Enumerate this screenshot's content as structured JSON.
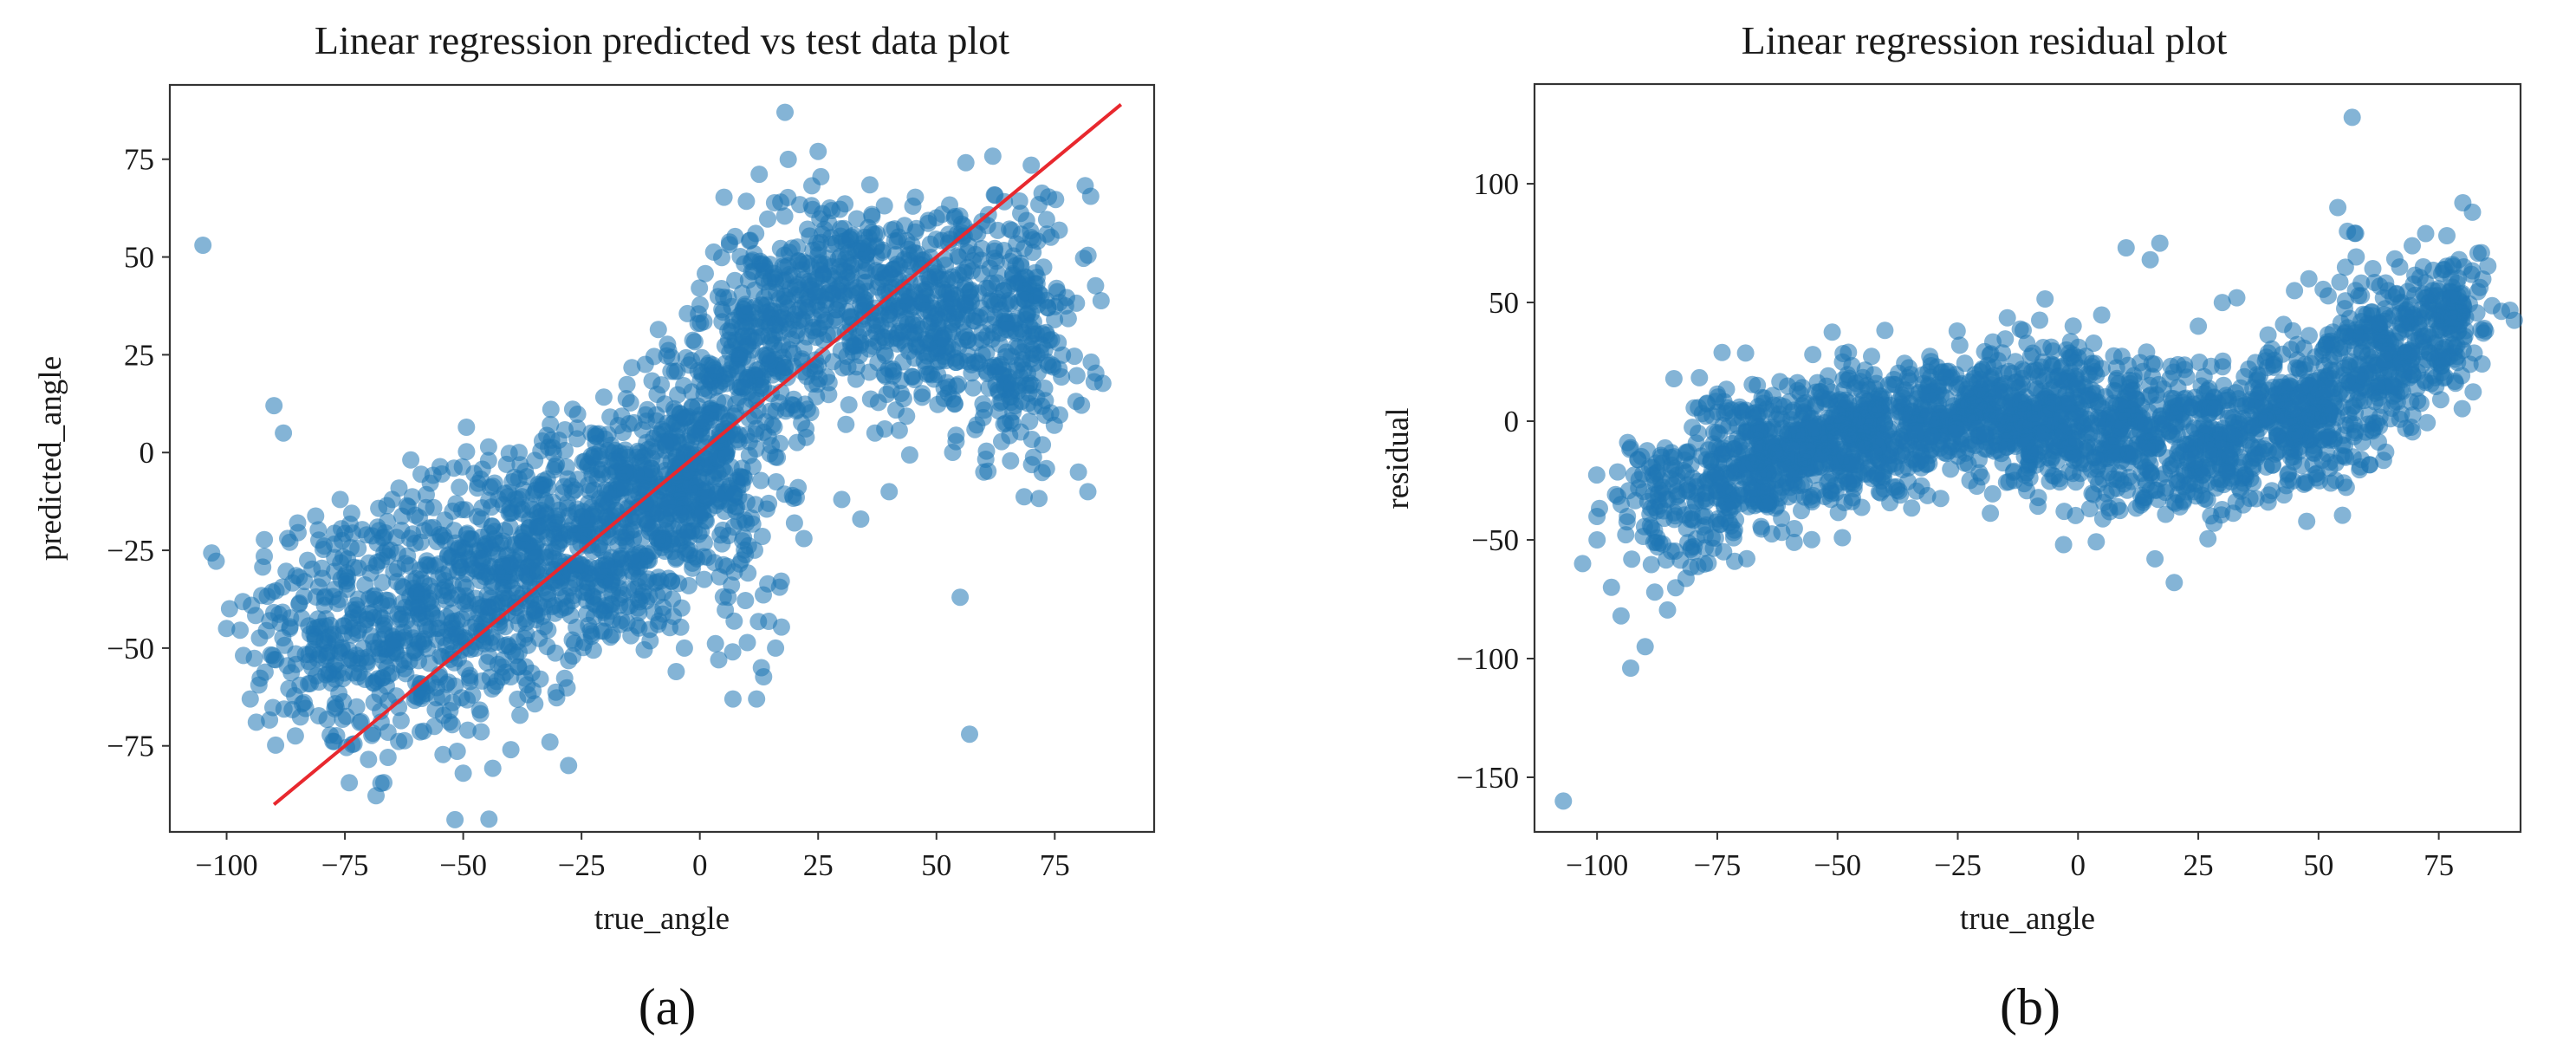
{
  "colors": {
    "point": "#1f77b4",
    "fit_line": "#e8282e",
    "axes": "#333333"
  },
  "chart_data": [
    {
      "id": "a",
      "type": "scatter",
      "title": "Linear regression predicted vs test data plot",
      "xlabel": "true_angle",
      "ylabel": "predicted_angle",
      "caption": "(a)",
      "xlim": [
        -112,
        96
      ],
      "ylim": [
        -97,
        94
      ],
      "xticks": [
        -100,
        -75,
        -50,
        -25,
        0,
        25,
        50,
        75
      ],
      "yticks": [
        -75,
        -50,
        -25,
        0,
        25,
        50,
        75
      ],
      "xtick_labels": [
        "−100",
        "−75",
        "−50",
        "−25",
        "0",
        "25",
        "50",
        "75"
      ],
      "ytick_labels": [
        "−75",
        "−50",
        "−25",
        "0",
        "25",
        "50",
        "75"
      ],
      "grid": false,
      "fit_line": {
        "x": [
          -90,
          89
        ],
        "y": [
          -90,
          89
        ]
      },
      "point_alpha": 0.55,
      "clusters": [
        {
          "cx": -80,
          "cy": -45,
          "sx": 9,
          "sy": 17,
          "n": 190
        },
        {
          "cx": -60,
          "cy": -45,
          "sx": 9,
          "sy": 17,
          "n": 320
        },
        {
          "cx": -40,
          "cy": -32,
          "sx": 9,
          "sy": 16,
          "n": 340
        },
        {
          "cx": -22,
          "cy": -20,
          "sx": 8,
          "sy": 15,
          "n": 320
        },
        {
          "cx": -8,
          "cy": -10,
          "sx": 6,
          "sy": 15,
          "n": 280
        },
        {
          "cx": 2,
          "cy": 0,
          "sx": 5,
          "sy": 15,
          "n": 220
        },
        {
          "cx": 12,
          "cy": 28,
          "sx": 6,
          "sy": 15,
          "n": 210
        },
        {
          "cx": 30,
          "cy": 42,
          "sx": 10,
          "sy": 12,
          "n": 320
        },
        {
          "cx": 50,
          "cy": 35,
          "sx": 9,
          "sy": 14,
          "n": 300
        },
        {
          "cx": 68,
          "cy": 30,
          "sx": 7,
          "sy": 17,
          "n": 240
        },
        {
          "cx": 10,
          "cy": -25,
          "sx": 6,
          "sy": 15,
          "n": 50
        }
      ],
      "points": [
        [
          -105,
          53
        ],
        [
          -90,
          12
        ],
        [
          -88,
          5
        ],
        [
          -95,
          -63
        ],
        [
          -100,
          -45
        ],
        [
          -85,
          -18
        ],
        [
          -76,
          -12
        ],
        [
          -65,
          -12
        ],
        [
          -50,
          -82
        ],
        [
          -5,
          -56
        ],
        [
          4,
          -53
        ],
        [
          7,
          -63
        ],
        [
          12,
          -63
        ],
        [
          13,
          -55
        ],
        [
          16,
          -50
        ],
        [
          18,
          87
        ],
        [
          25,
          77
        ],
        [
          45,
          63
        ],
        [
          50,
          60
        ],
        [
          55,
          -37
        ],
        [
          57,
          -72
        ],
        [
          60,
          -5
        ],
        [
          80,
          -5
        ],
        [
          82,
          -10
        ],
        [
          37,
          5
        ],
        [
          30,
          -12
        ],
        [
          34,
          -17
        ],
        [
          20,
          -18
        ],
        [
          22,
          -22
        ],
        [
          40,
          -10
        ]
      ]
    },
    {
      "id": "b",
      "type": "scatter",
      "title": "Linear regression residual plot",
      "xlabel": "true_angle",
      "ylabel": "residual",
      "caption": "(b)",
      "xlim": [
        -113,
        92
      ],
      "ylim": [
        -173,
        142
      ],
      "xticks": [
        -100,
        -75,
        -50,
        -25,
        0,
        25,
        50,
        75
      ],
      "yticks": [
        -150,
        -100,
        -50,
        0,
        50,
        100
      ],
      "xtick_labels": [
        "−100",
        "−75",
        "−50",
        "−25",
        "0",
        "25",
        "50",
        "75"
      ],
      "ytick_labels": [
        "−150",
        "−100",
        "−50",
        "0",
        "50",
        "100"
      ],
      "grid": false,
      "point_alpha": 0.55,
      "clusters": [
        {
          "cx": -85,
          "cy": -35,
          "sx": 6,
          "sy": 15,
          "n": 130
        },
        {
          "cx": -68,
          "cy": -18,
          "sx": 8,
          "sy": 15,
          "n": 330
        },
        {
          "cx": -48,
          "cy": -6,
          "sx": 9,
          "sy": 14,
          "n": 380
        },
        {
          "cx": -25,
          "cy": 2,
          "sx": 9,
          "sy": 13,
          "n": 330
        },
        {
          "cx": -5,
          "cy": 2,
          "sx": 8,
          "sy": 15,
          "n": 320
        },
        {
          "cx": 12,
          "cy": -8,
          "sx": 7,
          "sy": 17,
          "n": 230
        },
        {
          "cx": 30,
          "cy": -8,
          "sx": 8,
          "sy": 15,
          "n": 260
        },
        {
          "cx": 48,
          "cy": 5,
          "sx": 8,
          "sy": 15,
          "n": 300
        },
        {
          "cx": 65,
          "cy": 30,
          "sx": 7,
          "sy": 17,
          "n": 280
        },
        {
          "cx": 78,
          "cy": 45,
          "sx": 4,
          "sy": 14,
          "n": 120
        }
      ],
      "points": [
        [
          -107,
          -160
        ],
        [
          -93,
          -104
        ],
        [
          -95,
          -82
        ],
        [
          -90,
          -95
        ],
        [
          -97,
          -70
        ],
        [
          -100,
          -50
        ],
        [
          -103,
          -60
        ],
        [
          -88,
          -72
        ],
        [
          -80,
          -55
        ],
        [
          57,
          128
        ],
        [
          54,
          90
        ],
        [
          56,
          80
        ],
        [
          80,
          92
        ],
        [
          82,
          88
        ],
        [
          10,
          73
        ],
        [
          17,
          75
        ],
        [
          15,
          68
        ],
        [
          20,
          -68
        ],
        [
          16,
          -58
        ],
        [
          -3,
          -52
        ],
        [
          25,
          40
        ],
        [
          30,
          50
        ],
        [
          33,
          52
        ],
        [
          45,
          55
        ],
        [
          48,
          60
        ]
      ]
    }
  ]
}
